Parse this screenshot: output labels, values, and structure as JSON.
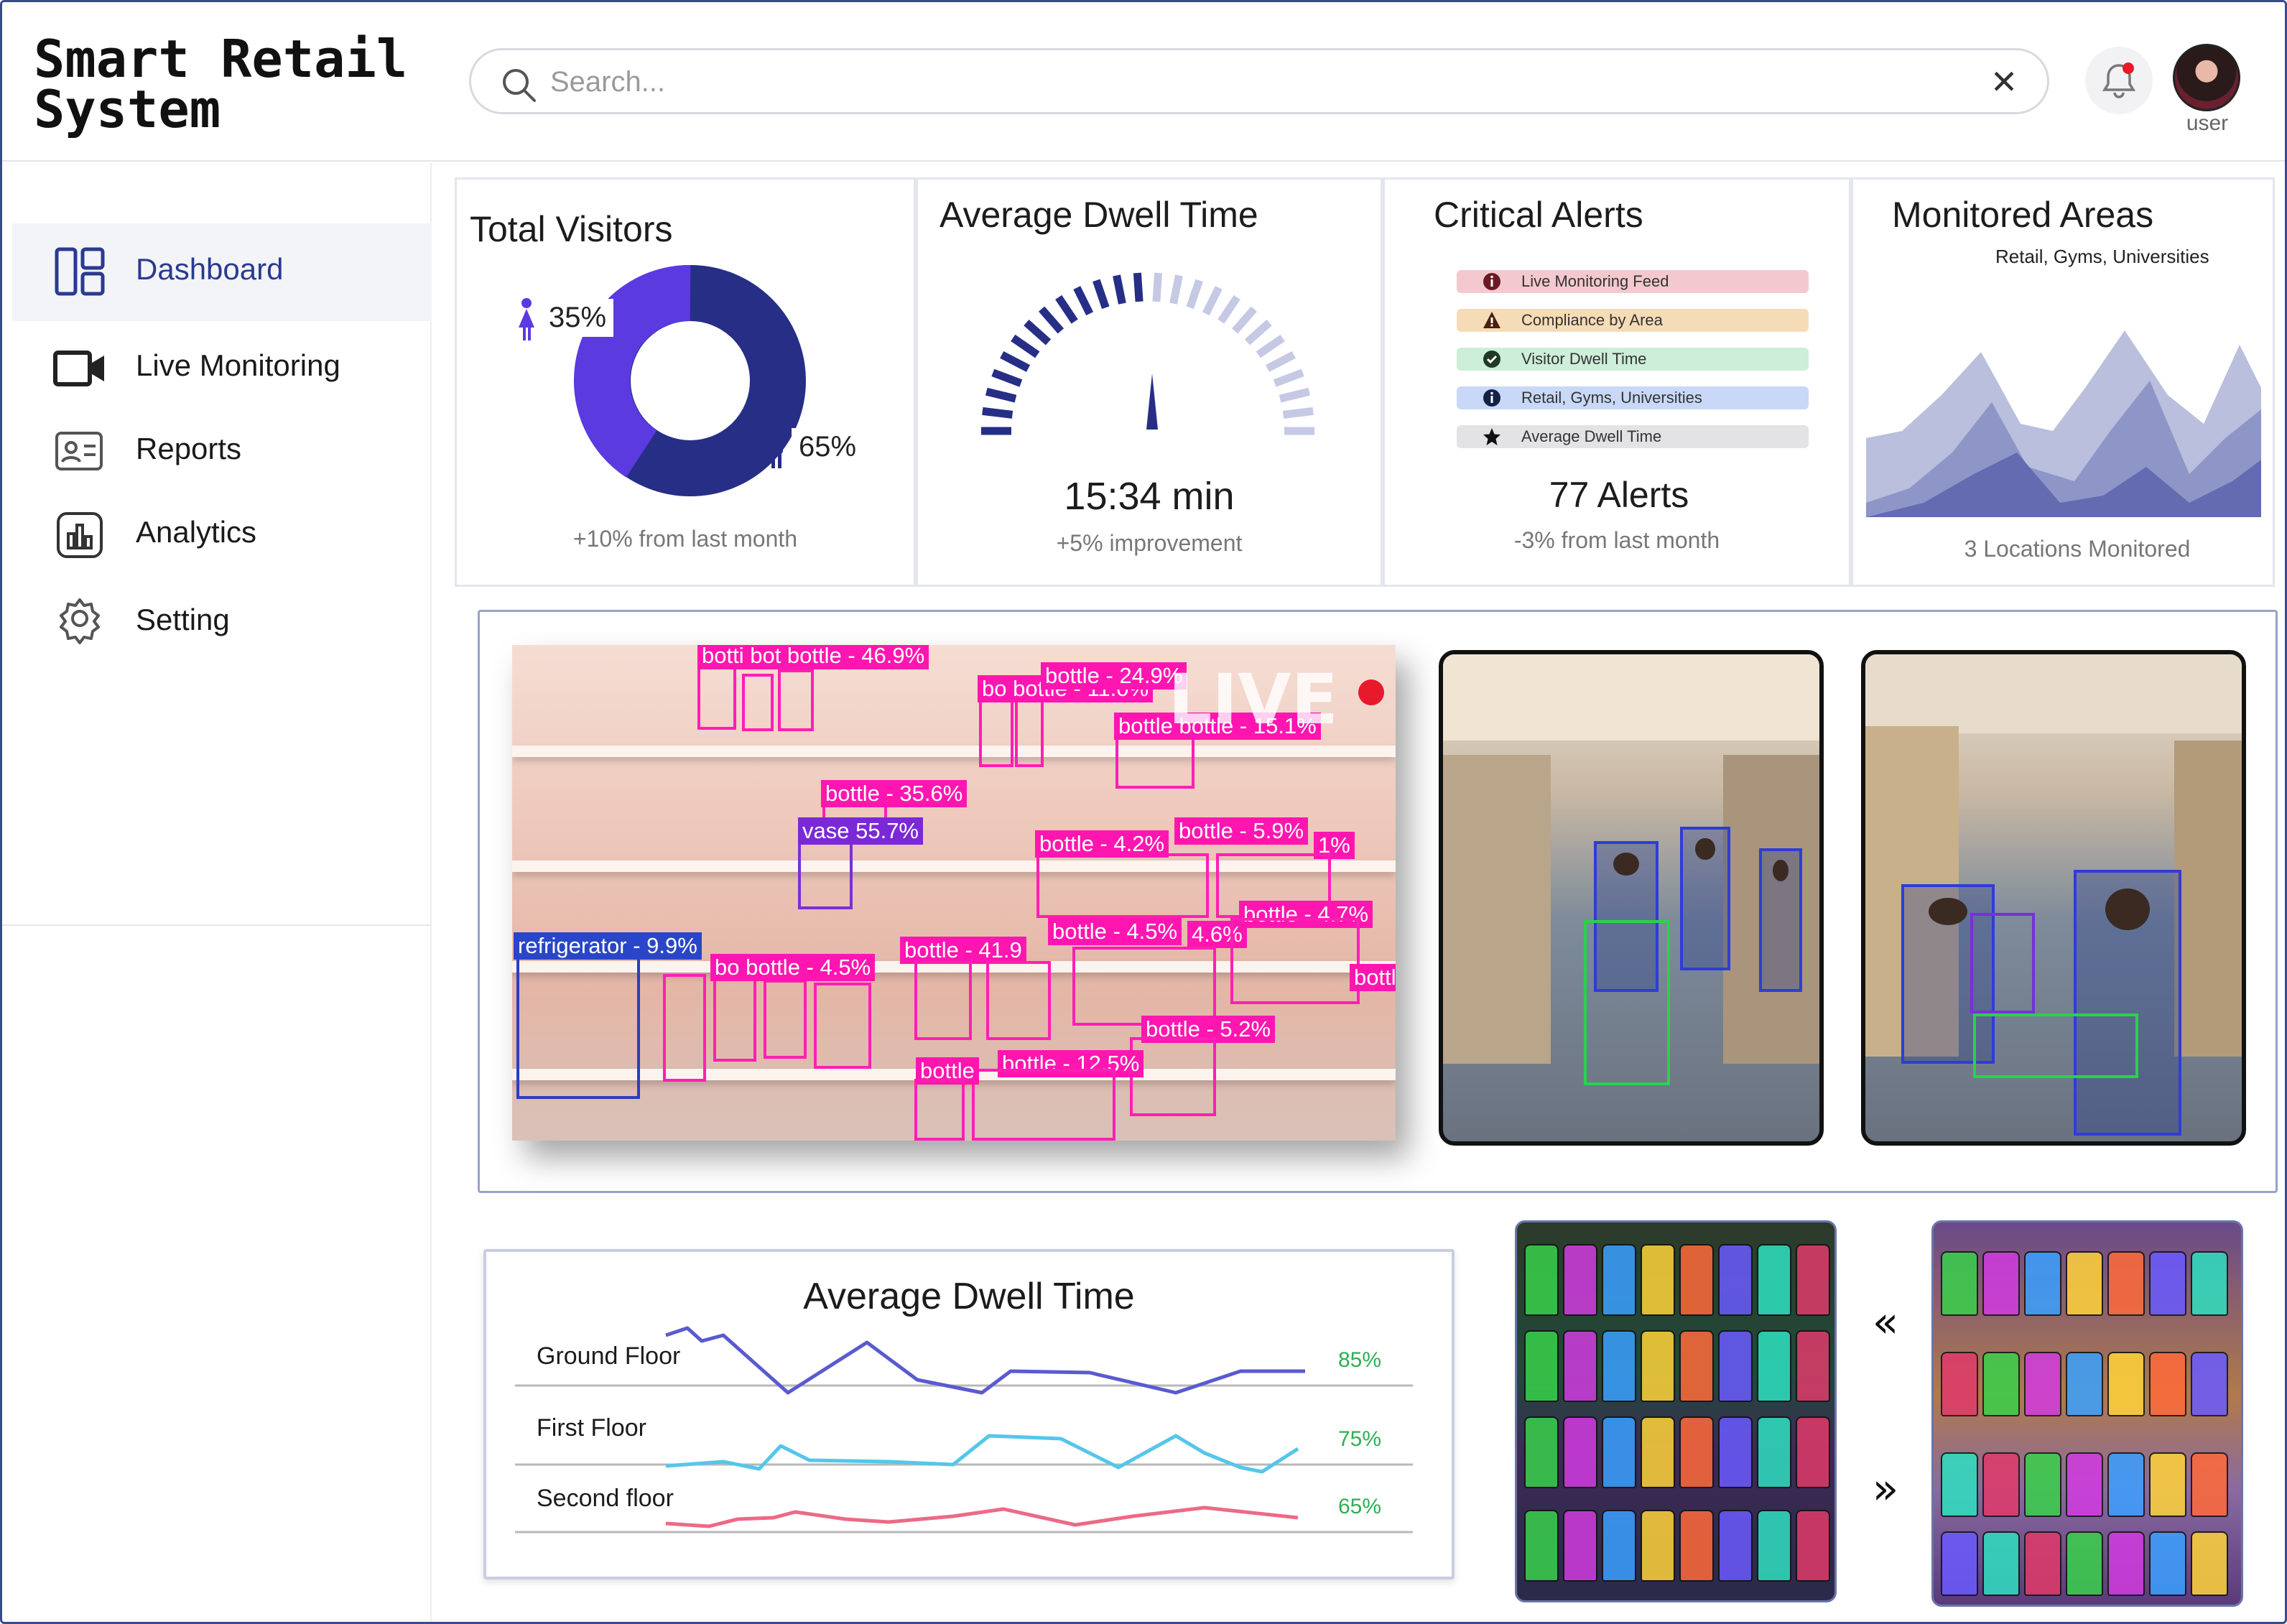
{
  "app": {
    "title_line1": "Smart Retail",
    "title_line2": "System"
  },
  "search": {
    "placeholder": "Search..."
  },
  "header": {
    "clear_symbol": "✕",
    "user_label": "user"
  },
  "colors": {
    "accent": "#2b3a8f",
    "donut_main": "#262e86",
    "donut_secondary": "#5b3ae0",
    "positive": "#2fae54",
    "live_dot": "#e7192a",
    "detection": "#ff16b0"
  },
  "sidebar": {
    "items": [
      {
        "label": "Dashboard",
        "icon": "dashboard-icon",
        "active": true
      },
      {
        "label": "Live Monitoring",
        "icon": "video-camera-icon"
      },
      {
        "label": "Reports",
        "icon": "id-card-icon"
      },
      {
        "label": "Analytics",
        "icon": "bar-chart-icon"
      },
      {
        "label": "Setting",
        "icon": "gear-icon"
      }
    ]
  },
  "cards": {
    "visitors": {
      "title": "Total Visitors",
      "female_pct": "35%",
      "male_pct": "65%",
      "sub": "+10% from last month"
    },
    "dwell": {
      "title": "Average Dwell Time",
      "value": "15:34 min",
      "sub": "+5% improvement"
    },
    "alerts": {
      "title": "Critical Alerts",
      "rows": [
        {
          "label": "Live Monitoring Feed",
          "icon": "info-icon",
          "color": "#f3c9cf"
        },
        {
          "label": "Compliance by Area",
          "icon": "warning-icon",
          "color": "#f6dcb6"
        },
        {
          "label": "Visitor Dwell Time",
          "icon": "check-circle-icon",
          "color": "#cdeed9"
        },
        {
          "label": "Retail, Gyms, Universities",
          "icon": "info-icon",
          "color": "#c8d8f6"
        },
        {
          "label": "Average Dwell Time",
          "icon": "star-icon",
          "color": "#e3e3e6"
        }
      ],
      "value": "77 Alerts",
      "sub": "-3% from last month"
    },
    "areas": {
      "title": "Monitored Areas",
      "subtitle": "Retail, Gyms, Universities",
      "sub": "3 Locations Monitored"
    }
  },
  "live": {
    "tag": "LIVE",
    "detections": [
      {
        "label": "botti bot bottle - 46.9%"
      },
      {
        "label": "bo bottle - 11.0%"
      },
      {
        "label": "bottle - 24.9%"
      },
      {
        "label": "bottle bottle - 15.1%"
      },
      {
        "label": "bottle - 35.6%"
      },
      {
        "label": "vase  55.7%"
      },
      {
        "label": "bottle - 4.2%"
      },
      {
        "label": "bottle - 5.9%"
      },
      {
        "label": "1%"
      },
      {
        "label": "refrigerator - 9.9%"
      },
      {
        "label": "bo bottle - 4.5%"
      },
      {
        "label": "bottle - 41.9"
      },
      {
        "label": "bottle - 4.5%"
      },
      {
        "label": "4.6%"
      },
      {
        "label": "bottle - 4.7%"
      },
      {
        "label": "bottle - 5.2%"
      },
      {
        "label": "bottle - 12.5%"
      },
      {
        "label": "bottle"
      },
      {
        "label": "bottl"
      }
    ]
  },
  "dwell_chart": {
    "title": "Average Dwell Time",
    "rows": [
      {
        "label": "Ground Floor",
        "pct": "85%",
        "color": "#5a5ad0"
      },
      {
        "label": "First Floor",
        "pct": "75%",
        "color": "#55c6ea"
      },
      {
        "label": "Second floor",
        "pct": "65%",
        "color": "#ec6a86"
      }
    ]
  },
  "carousel": {
    "prev": "«",
    "next": "»"
  }
}
